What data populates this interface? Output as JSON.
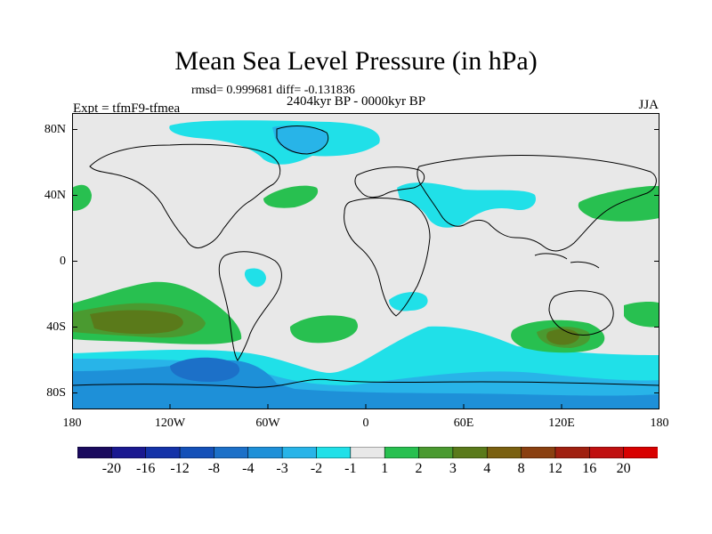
{
  "title": "Mean Sea Level Pressure (in hPa)",
  "stats": "rmsd= 0.999681 diff= -0.131836",
  "period": "2404kyr BP - 0000kyr BP",
  "experiment": "Expt = tfmF9-tfmea",
  "season": "JJA",
  "y_axis": [
    "80N",
    "40N",
    "0",
    "40S",
    "80S"
  ],
  "x_axis": [
    "180",
    "120W",
    "60W",
    "0",
    "60E",
    "120E",
    "180"
  ],
  "colorbar": {
    "colors": [
      "#1a0a5e",
      "#1a1890",
      "#1432a8",
      "#1450b8",
      "#1c70c8",
      "#1e90d8",
      "#28b4e8",
      "#20e0e8",
      "#e8e8e8",
      "#28c050",
      "#4a9a30",
      "#5a7a1a",
      "#7a6010",
      "#8a4010",
      "#a02010",
      "#c01010",
      "#d80000"
    ],
    "labels": [
      "-20",
      "-16",
      "-12",
      "-8",
      "-4",
      "-3",
      "-2",
      "-1",
      "1",
      "2",
      "3",
      "4",
      "8",
      "12",
      "16",
      "20"
    ]
  },
  "colors": {
    "land_bg": "#e8e8e8",
    "neg1": "#20e0e8",
    "neg2": "#28b4e8",
    "neg3": "#1e90d8",
    "neg4": "#1c70c8",
    "pos1": "#28c050",
    "pos2": "#4a9a30",
    "pos3": "#5a7a1a",
    "pos4": "#7a6010"
  }
}
